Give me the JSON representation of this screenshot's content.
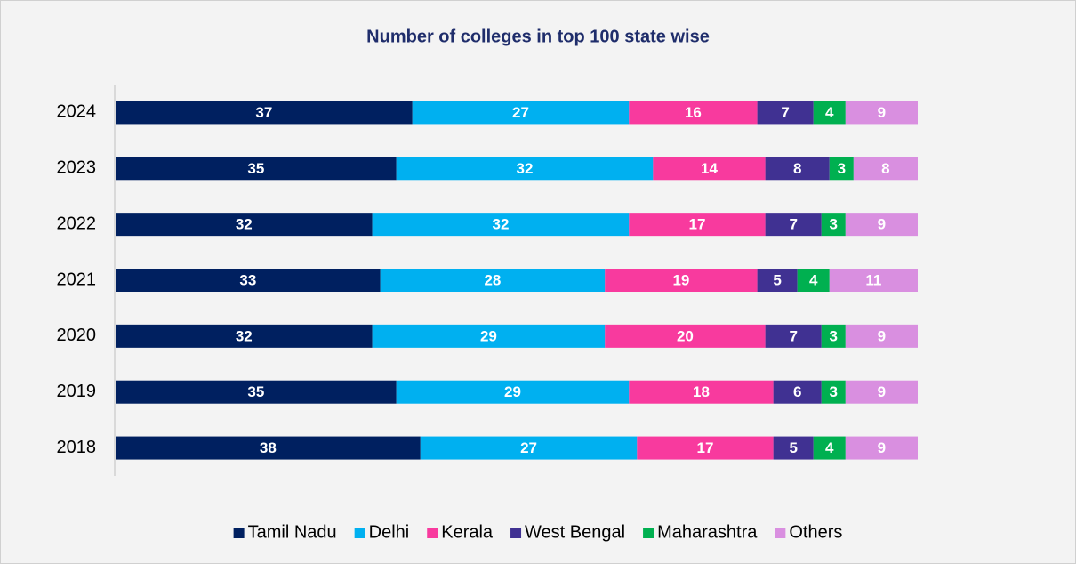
{
  "chart_data": {
    "type": "stacked-bar-horizontal",
    "title": "Number of colleges in top 100 state wise",
    "categories": [
      "2024",
      "2023",
      "2022",
      "2021",
      "2020",
      "2019",
      "2018"
    ],
    "series": [
      {
        "name": "Tamil Nadu",
        "color": "#002060",
        "values": [
          37,
          35,
          32,
          33,
          32,
          35,
          38
        ]
      },
      {
        "name": "Delhi",
        "color": "#00b0f0",
        "values": [
          27,
          32,
          32,
          28,
          29,
          29,
          27
        ]
      },
      {
        "name": "Kerala",
        "color": "#f83a9e",
        "values": [
          16,
          14,
          17,
          19,
          20,
          18,
          17
        ]
      },
      {
        "name": "West Bengal",
        "color": "#403192",
        "values": [
          7,
          8,
          7,
          5,
          7,
          6,
          5
        ]
      },
      {
        "name": "Maharashtra",
        "color": "#00b050",
        "values": [
          4,
          3,
          3,
          4,
          3,
          3,
          4
        ]
      },
      {
        "name": "Others",
        "color": "#d98fe0",
        "values": [
          9,
          8,
          9,
          11,
          9,
          9,
          9
        ]
      }
    ],
    "legend": "bottom"
  }
}
